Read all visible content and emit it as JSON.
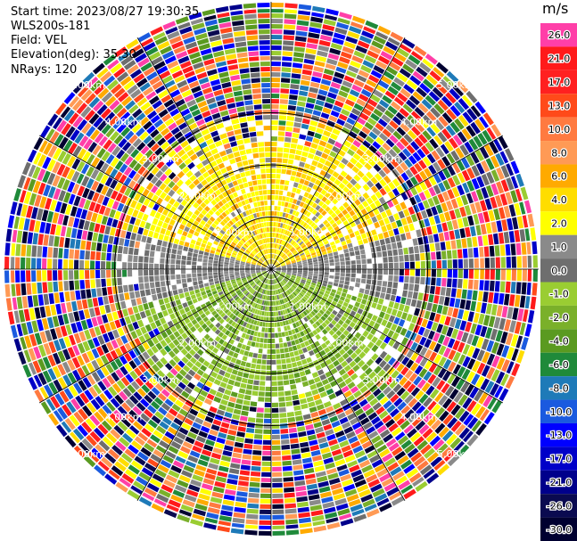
{
  "header": {
    "start_time": "Start time: 2023/08/27 19:30:35",
    "instrument": "WLS200s-181",
    "field": "Field: VEL",
    "elevation": "Elevation(deg): 35.30",
    "nrays": "NRays: 120"
  },
  "colorbar": {
    "unit": "m/s",
    "bins": [
      {
        "label": "26.0",
        "color": "#ff3fa8"
      },
      {
        "label": "21.0",
        "color": "#ff1a1a"
      },
      {
        "label": "17.0",
        "color": "#ff2020"
      },
      {
        "label": "13.0",
        "color": "#ff4a1a"
      },
      {
        "label": "10.0",
        "color": "#ff7a40"
      },
      {
        "label": "8.0",
        "color": "#ff9a55"
      },
      {
        "label": "6.0",
        "color": "#ffaa00"
      },
      {
        "label": "4.0",
        "color": "#ffdd00"
      },
      {
        "label": "2.0",
        "color": "#ffff00"
      },
      {
        "label": "1.0",
        "color": "#8a8a8a"
      },
      {
        "label": "0.0",
        "color": "#6e6e6e"
      },
      {
        "label": "-1.0",
        "color": "#9acd32"
      },
      {
        "label": "-2.0",
        "color": "#7ab02a"
      },
      {
        "label": "-4.0",
        "color": "#5a9a20"
      },
      {
        "label": "-6.0",
        "color": "#1f8a3a"
      },
      {
        "label": "-8.0",
        "color": "#1e7ab8"
      },
      {
        "label": "-10.0",
        "color": "#1a5adf"
      },
      {
        "label": "-13.0",
        "color": "#0000ff"
      },
      {
        "label": "-17.0",
        "color": "#0000c8"
      },
      {
        "label": "-21.0",
        "color": "#00008b"
      },
      {
        "label": "-26.0",
        "color": "#0a0a50"
      },
      {
        "label": "-30.0",
        "color": "#000030"
      }
    ]
  },
  "chart_data": {
    "type": "heatmap",
    "title": "",
    "projection": "polar",
    "range_ring_labels_km": [
      "1.00km",
      "2.00km",
      "3.00km",
      "4.00km",
      "5.00km"
    ],
    "range_rings_km": [
      1,
      2,
      3,
      4,
      5
    ],
    "spoke_interval_deg": 30,
    "clean_data_max_range_km": 2.9,
    "pattern": {
      "northern_half_near_range": "yellow/orange (positive, 2 to 6 m/s)",
      "southern_half_near_range": "green (negative, -1 to -4 m/s)",
      "east_west_axis": "gray (near zero)",
      "beyond_3km": "noise (all colors)"
    }
  }
}
